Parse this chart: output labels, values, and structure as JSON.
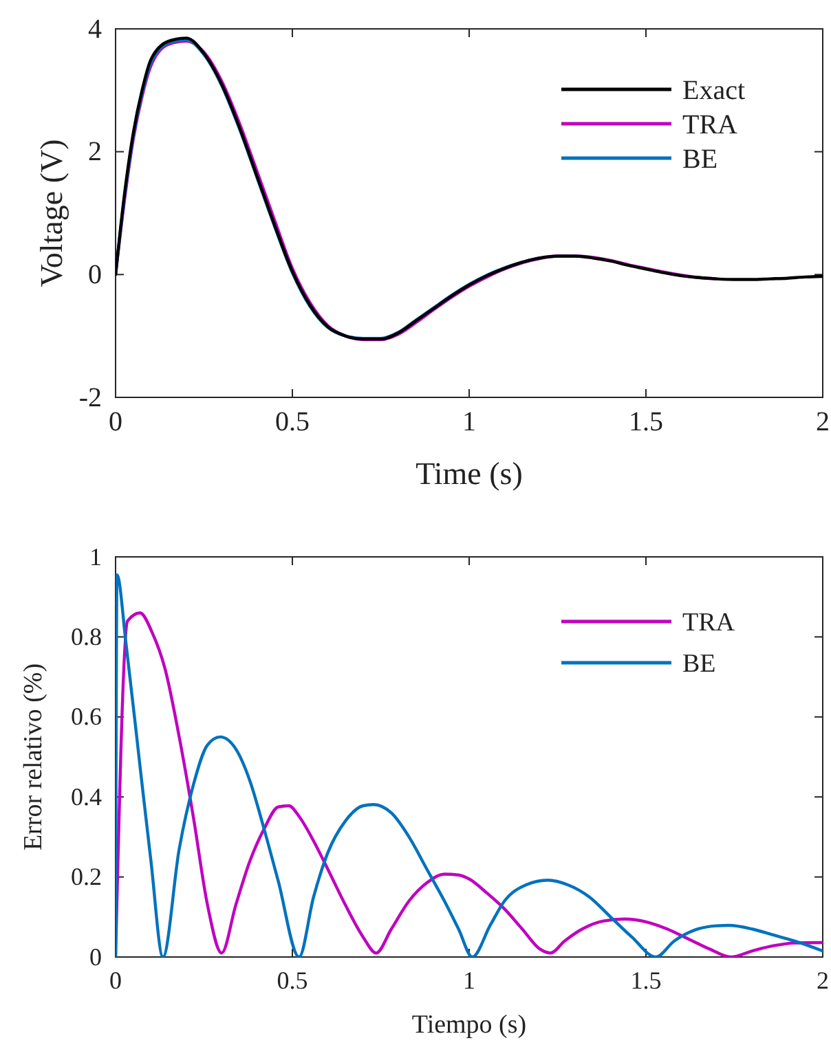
{
  "chart_data": [
    {
      "type": "line",
      "xlabel": "Time (s)",
      "ylabel": "Voltage (V)",
      "xlim": [
        0,
        2
      ],
      "ylim": [
        -2,
        4
      ],
      "xticks": [
        0,
        0.5,
        1,
        1.5,
        2
      ],
      "yticks": [
        -2,
        0,
        2,
        4
      ],
      "legend": "top right",
      "grid": false,
      "line_style": "solid",
      "marker": "none",
      "x": [
        0,
        0.025,
        0.05,
        0.075,
        0.1,
        0.15,
        0.2,
        0.25,
        0.3,
        0.35,
        0.4,
        0.45,
        0.5,
        0.55,
        0.6,
        0.65,
        0.7,
        0.75,
        0.8,
        0.85,
        0.9,
        0.95,
        1.0,
        1.05,
        1.1,
        1.15,
        1.2,
        1.25,
        1.3,
        1.35,
        1.4,
        1.45,
        1.5,
        1.55,
        1.6,
        1.65,
        1.7,
        1.75,
        1.8,
        1.85,
        1.9,
        1.95,
        2.0
      ],
      "series": [
        {
          "name": "TRA",
          "color": "#c000c0",
          "values": [
            0,
            1.2,
            2.2,
            2.9,
            3.4,
            3.75,
            3.8,
            3.62,
            3.15,
            2.47,
            1.68,
            0.88,
            0.1,
            -0.46,
            -0.83,
            -1.0,
            -1.06,
            -1.06,
            -0.97,
            -0.78,
            -0.57,
            -0.37,
            -0.19,
            -0.04,
            0.09,
            0.19,
            0.26,
            0.3,
            0.3,
            0.28,
            0.23,
            0.16,
            0.1,
            0.04,
            -0.01,
            -0.05,
            -0.07,
            null,
            null,
            null,
            null,
            null,
            null
          ]
        },
        {
          "name": "BE",
          "color": "#0072bd",
          "values": [
            0,
            1.25,
            2.25,
            2.95,
            3.45,
            3.77,
            3.82,
            3.58,
            3.08,
            2.38,
            1.58,
            0.78,
            0.03,
            -0.52,
            -0.86,
            -1.0,
            -1.04,
            -1.04,
            -0.94,
            -0.74,
            -0.54,
            -0.34,
            -0.16,
            -0.01,
            0.11,
            0.2,
            0.27,
            null,
            null,
            null,
            null,
            null,
            null,
            null,
            null,
            null,
            null,
            null,
            null,
            null,
            null,
            null,
            null
          ]
        },
        {
          "name": "Exact",
          "color": "#000000",
          "values": [
            0,
            1.3,
            2.3,
            3.0,
            3.5,
            3.8,
            3.85,
            3.6,
            3.1,
            2.4,
            1.6,
            0.8,
            0.05,
            -0.5,
            -0.85,
            -1.0,
            -1.05,
            -1.05,
            -0.95,
            -0.75,
            -0.55,
            -0.35,
            -0.17,
            -0.02,
            0.1,
            0.2,
            0.27,
            0.3,
            0.3,
            0.27,
            0.22,
            0.15,
            0.09,
            0.03,
            -0.02,
            -0.05,
            -0.07,
            -0.08,
            -0.08,
            -0.07,
            -0.06,
            -0.04,
            -0.03
          ]
        }
      ]
    },
    {
      "type": "line",
      "xlabel": "Tiempo (s)",
      "ylabel": "Error relativo (%)",
      "xlim": [
        0,
        2
      ],
      "ylim": [
        0,
        1
      ],
      "xticks": [
        0,
        0.5,
        1,
        1.5,
        2
      ],
      "yticks": [
        0,
        0.2,
        0.4,
        0.6,
        0.8,
        1
      ],
      "legend": "top right",
      "grid": false,
      "line_style": "solid",
      "marker": "none",
      "series": [
        {
          "name": "TRA",
          "color": "#c000c0",
          "x": [
            0,
            0.034,
            0.069,
            0.104,
            0.14,
            0.18,
            0.22,
            0.26,
            0.3,
            0.34,
            0.38,
            0.42,
            0.46,
            0.49,
            0.52,
            0.56,
            0.6,
            0.65,
            0.7,
            0.737,
            0.78,
            0.83,
            0.88,
            0.93,
            0.97,
            1.0,
            1.05,
            1.1,
            1.15,
            1.2,
            1.23,
            1.27,
            1.32,
            1.38,
            1.44,
            1.5,
            1.56,
            1.62,
            1.68,
            1.74,
            1.8,
            1.86,
            1.92,
            2.0
          ],
          "values": [
            0,
            0.84,
            0.86,
            0.81,
            0.72,
            0.55,
            0.35,
            0.13,
            0.01,
            0.13,
            0.24,
            0.32,
            0.375,
            0.378,
            0.35,
            0.29,
            0.22,
            0.13,
            0.05,
            0.01,
            0.07,
            0.14,
            0.185,
            0.207,
            0.205,
            0.195,
            0.16,
            0.12,
            0.07,
            0.02,
            0.01,
            0.04,
            0.07,
            0.09,
            0.095,
            0.088,
            0.07,
            0.045,
            0.02,
            0,
            0.015,
            0.028,
            0.035,
            0.036
          ]
        },
        {
          "name": "BE",
          "color": "#0072bd",
          "x": [
            0,
            0.004,
            0.03,
            0.07,
            0.1,
            0.134,
            0.18,
            0.22,
            0.26,
            0.296,
            0.34,
            0.38,
            0.42,
            0.46,
            0.519,
            0.56,
            0.6,
            0.65,
            0.7,
            0.73,
            0.78,
            0.83,
            0.88,
            0.93,
            0.97,
            1.009,
            1.06,
            1.1,
            1.16,
            1.223,
            1.28,
            1.34,
            1.4,
            1.46,
            1.528,
            1.58,
            1.64,
            1.7,
            1.735,
            1.8,
            1.86,
            1.92,
            2.0
          ],
          "values": [
            0,
            0.955,
            0.78,
            0.47,
            0.24,
            0,
            0.27,
            0.43,
            0.53,
            0.55,
            0.52,
            0.44,
            0.32,
            0.19,
            0,
            0.15,
            0.26,
            0.34,
            0.378,
            0.381,
            0.36,
            0.3,
            0.22,
            0.14,
            0.07,
            0,
            0.08,
            0.14,
            0.18,
            0.192,
            0.18,
            0.15,
            0.1,
            0.05,
            0,
            0.04,
            0.068,
            0.078,
            0.079,
            0.07,
            0.055,
            0.04,
            0.015
          ]
        }
      ]
    }
  ]
}
